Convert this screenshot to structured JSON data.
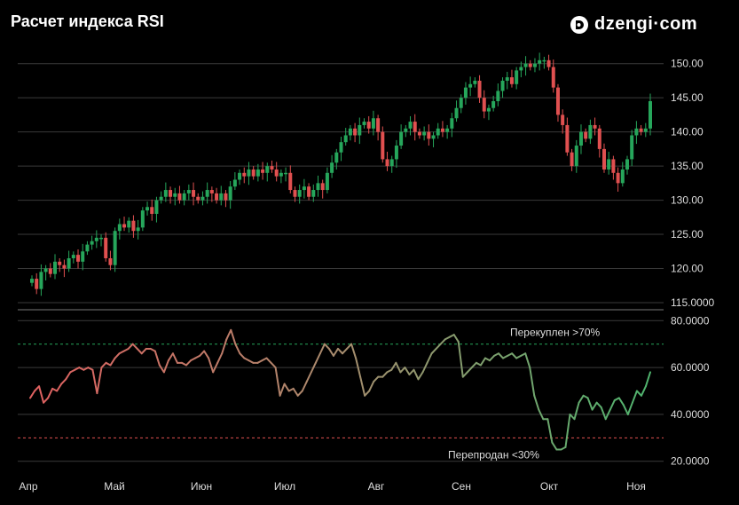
{
  "header": {
    "title": "Расчет индекса RSI"
  },
  "brand": {
    "name": "dzengi·com",
    "icon": "dzengi-logo-icon"
  },
  "colors": {
    "up": "#26a65b",
    "down": "#e05050",
    "grid": "#3a3a3a",
    "overbought": "#26a65b",
    "oversold": "#e05050"
  },
  "chart_data": [
    {
      "type": "candlestick",
      "ylim": [
        115,
        151
      ],
      "yticks": [
        115,
        120,
        125,
        130,
        135,
        140,
        145,
        150
      ],
      "ytick_labels": [
        "115.0000",
        "120.00",
        "125.00",
        "130.00",
        "135.00",
        "140.00",
        "145.00",
        "150.00"
      ],
      "grid": true,
      "close": [
        118.5,
        117.0,
        119.5,
        120.0,
        119.2,
        121.0,
        120.5,
        120.0,
        121.5,
        122.0,
        121.0,
        122.5,
        123.5,
        124.0,
        124.5,
        124.5,
        121.5,
        120.5,
        125.5,
        126.5,
        126.0,
        127.0,
        125.5,
        126.0,
        128.5,
        129.0,
        128.0,
        130.0,
        130.5,
        131.5,
        130.5,
        131.0,
        130.0,
        131.0,
        131.5,
        130.5,
        130.0,
        130.5,
        131.5,
        131.0,
        130.0,
        131.0,
        130.0,
        132.0,
        133.0,
        134.0,
        133.5,
        134.5,
        133.5,
        134.5,
        134.0,
        135.0,
        134.5,
        133.5,
        134.0,
        134.0,
        131.5,
        130.5,
        131.5,
        132.0,
        130.5,
        131.5,
        132.5,
        131.5,
        134.0,
        135.5,
        137.0,
        138.5,
        139.5,
        140.5,
        139.5,
        141.0,
        141.5,
        140.5,
        142.0,
        140.0,
        136.0,
        135.0,
        136.0,
        138.0,
        140.0,
        140.5,
        141.5,
        140.0,
        139.5,
        140.0,
        139.0,
        139.5,
        140.5,
        140.0,
        140.5,
        142.0,
        143.5,
        145.0,
        146.5,
        147.0,
        147.5,
        145.0,
        143.0,
        143.5,
        144.5,
        146.0,
        147.5,
        148.0,
        147.0,
        149.0,
        149.5,
        150.0,
        149.5,
        150.0,
        150.5,
        150.5,
        149.5,
        146.5,
        142.5,
        141.0,
        137.0,
        135.0,
        138.0,
        140.0,
        139.0,
        141.0,
        140.5,
        137.5,
        134.5,
        136.0,
        134.0,
        132.5,
        134.5,
        136.0,
        139.5,
        140.5,
        140.0,
        140.5,
        144.5
      ],
      "annotations": []
    },
    {
      "type": "line",
      "ylim": [
        18,
        82
      ],
      "yticks": [
        20,
        40,
        60,
        80
      ],
      "ytick_labels": [
        "20.0000",
        "40.0000",
        "60.0000",
        "80.0000"
      ],
      "overbought": 70,
      "oversold": 30,
      "overbought_label": "Перекуплен >70%",
      "oversold_label": "Перепродан <30%",
      "values": [
        47,
        50,
        52,
        45,
        47,
        51,
        50,
        53,
        55,
        58,
        59,
        60,
        59,
        60,
        59,
        49,
        60,
        62,
        61,
        64,
        66,
        67,
        68,
        70,
        68,
        66,
        68,
        68,
        67,
        61,
        58,
        63,
        66,
        62,
        62,
        61,
        63,
        64,
        65,
        67,
        64,
        58,
        62,
        66,
        72,
        76,
        70,
        66,
        64,
        63,
        62,
        62,
        63,
        64,
        62,
        60,
        48,
        53,
        50,
        51,
        48,
        50,
        54,
        58,
        62,
        66,
        70,
        68,
        65,
        68,
        66,
        68,
        70,
        64,
        56,
        48,
        50,
        54,
        56,
        56,
        58,
        59,
        62,
        58,
        60,
        57,
        59,
        55,
        58,
        62,
        66,
        68,
        70,
        72,
        73,
        74,
        71,
        56,
        58,
        60,
        62,
        61,
        64,
        63,
        65,
        66,
        64,
        65,
        66,
        64,
        65,
        66,
        60,
        48,
        42,
        38,
        38,
        28,
        25,
        25,
        26,
        40,
        38,
        45,
        48,
        47,
        42,
        45,
        43,
        38,
        42,
        46,
        47,
        44,
        40,
        45,
        50,
        48,
        52,
        58
      ],
      "annotations": [
        "Перекуплен >70%",
        "Перепродан <30%"
      ]
    }
  ],
  "xaxis": {
    "tick_labels": [
      "Апр",
      "Май",
      "Июн",
      "Июл",
      "Авг",
      "Сен",
      "Окт",
      "Ноя"
    ]
  }
}
